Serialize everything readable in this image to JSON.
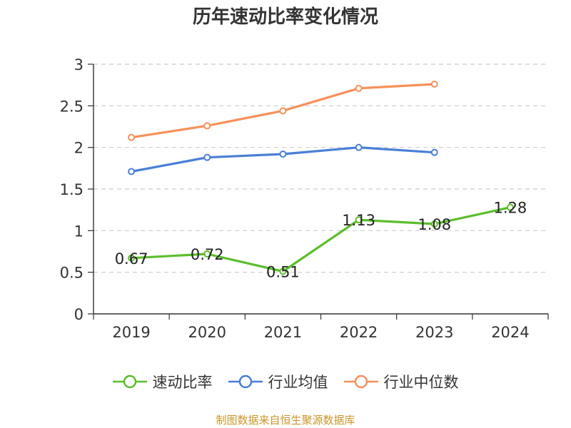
{
  "chart_data": {
    "type": "line",
    "title": "历年速动比率变化情况",
    "categories": [
      "2019",
      "2020",
      "2021",
      "2022",
      "2023",
      "2024"
    ],
    "ylim": [
      0,
      3
    ],
    "yticks": [
      "0",
      "0.5",
      "1",
      "1.5",
      "2",
      "2.5",
      "3"
    ],
    "ytick_values": [
      0,
      0.5,
      1,
      1.5,
      2,
      2.5,
      3
    ],
    "grid": true,
    "legend_position": "bottom",
    "series": [
      {
        "name": "速动比率",
        "color": "#5cbd2c",
        "values": [
          0.67,
          0.72,
          0.51,
          1.13,
          1.08,
          1.28
        ],
        "labels": [
          "0.67",
          "0.72",
          "0.51",
          "1.13",
          "1.08",
          "1.28"
        ]
      },
      {
        "name": "行业均值",
        "color": "#4a7fd6",
        "values": [
          1.71,
          1.88,
          1.92,
          2.0,
          1.94,
          null
        ]
      },
      {
        "name": "行业中位数",
        "color": "#f5915a",
        "values": [
          2.12,
          2.26,
          2.44,
          2.71,
          2.76,
          null
        ]
      }
    ]
  },
  "source": "制图数据来自恒生聚源数据库"
}
